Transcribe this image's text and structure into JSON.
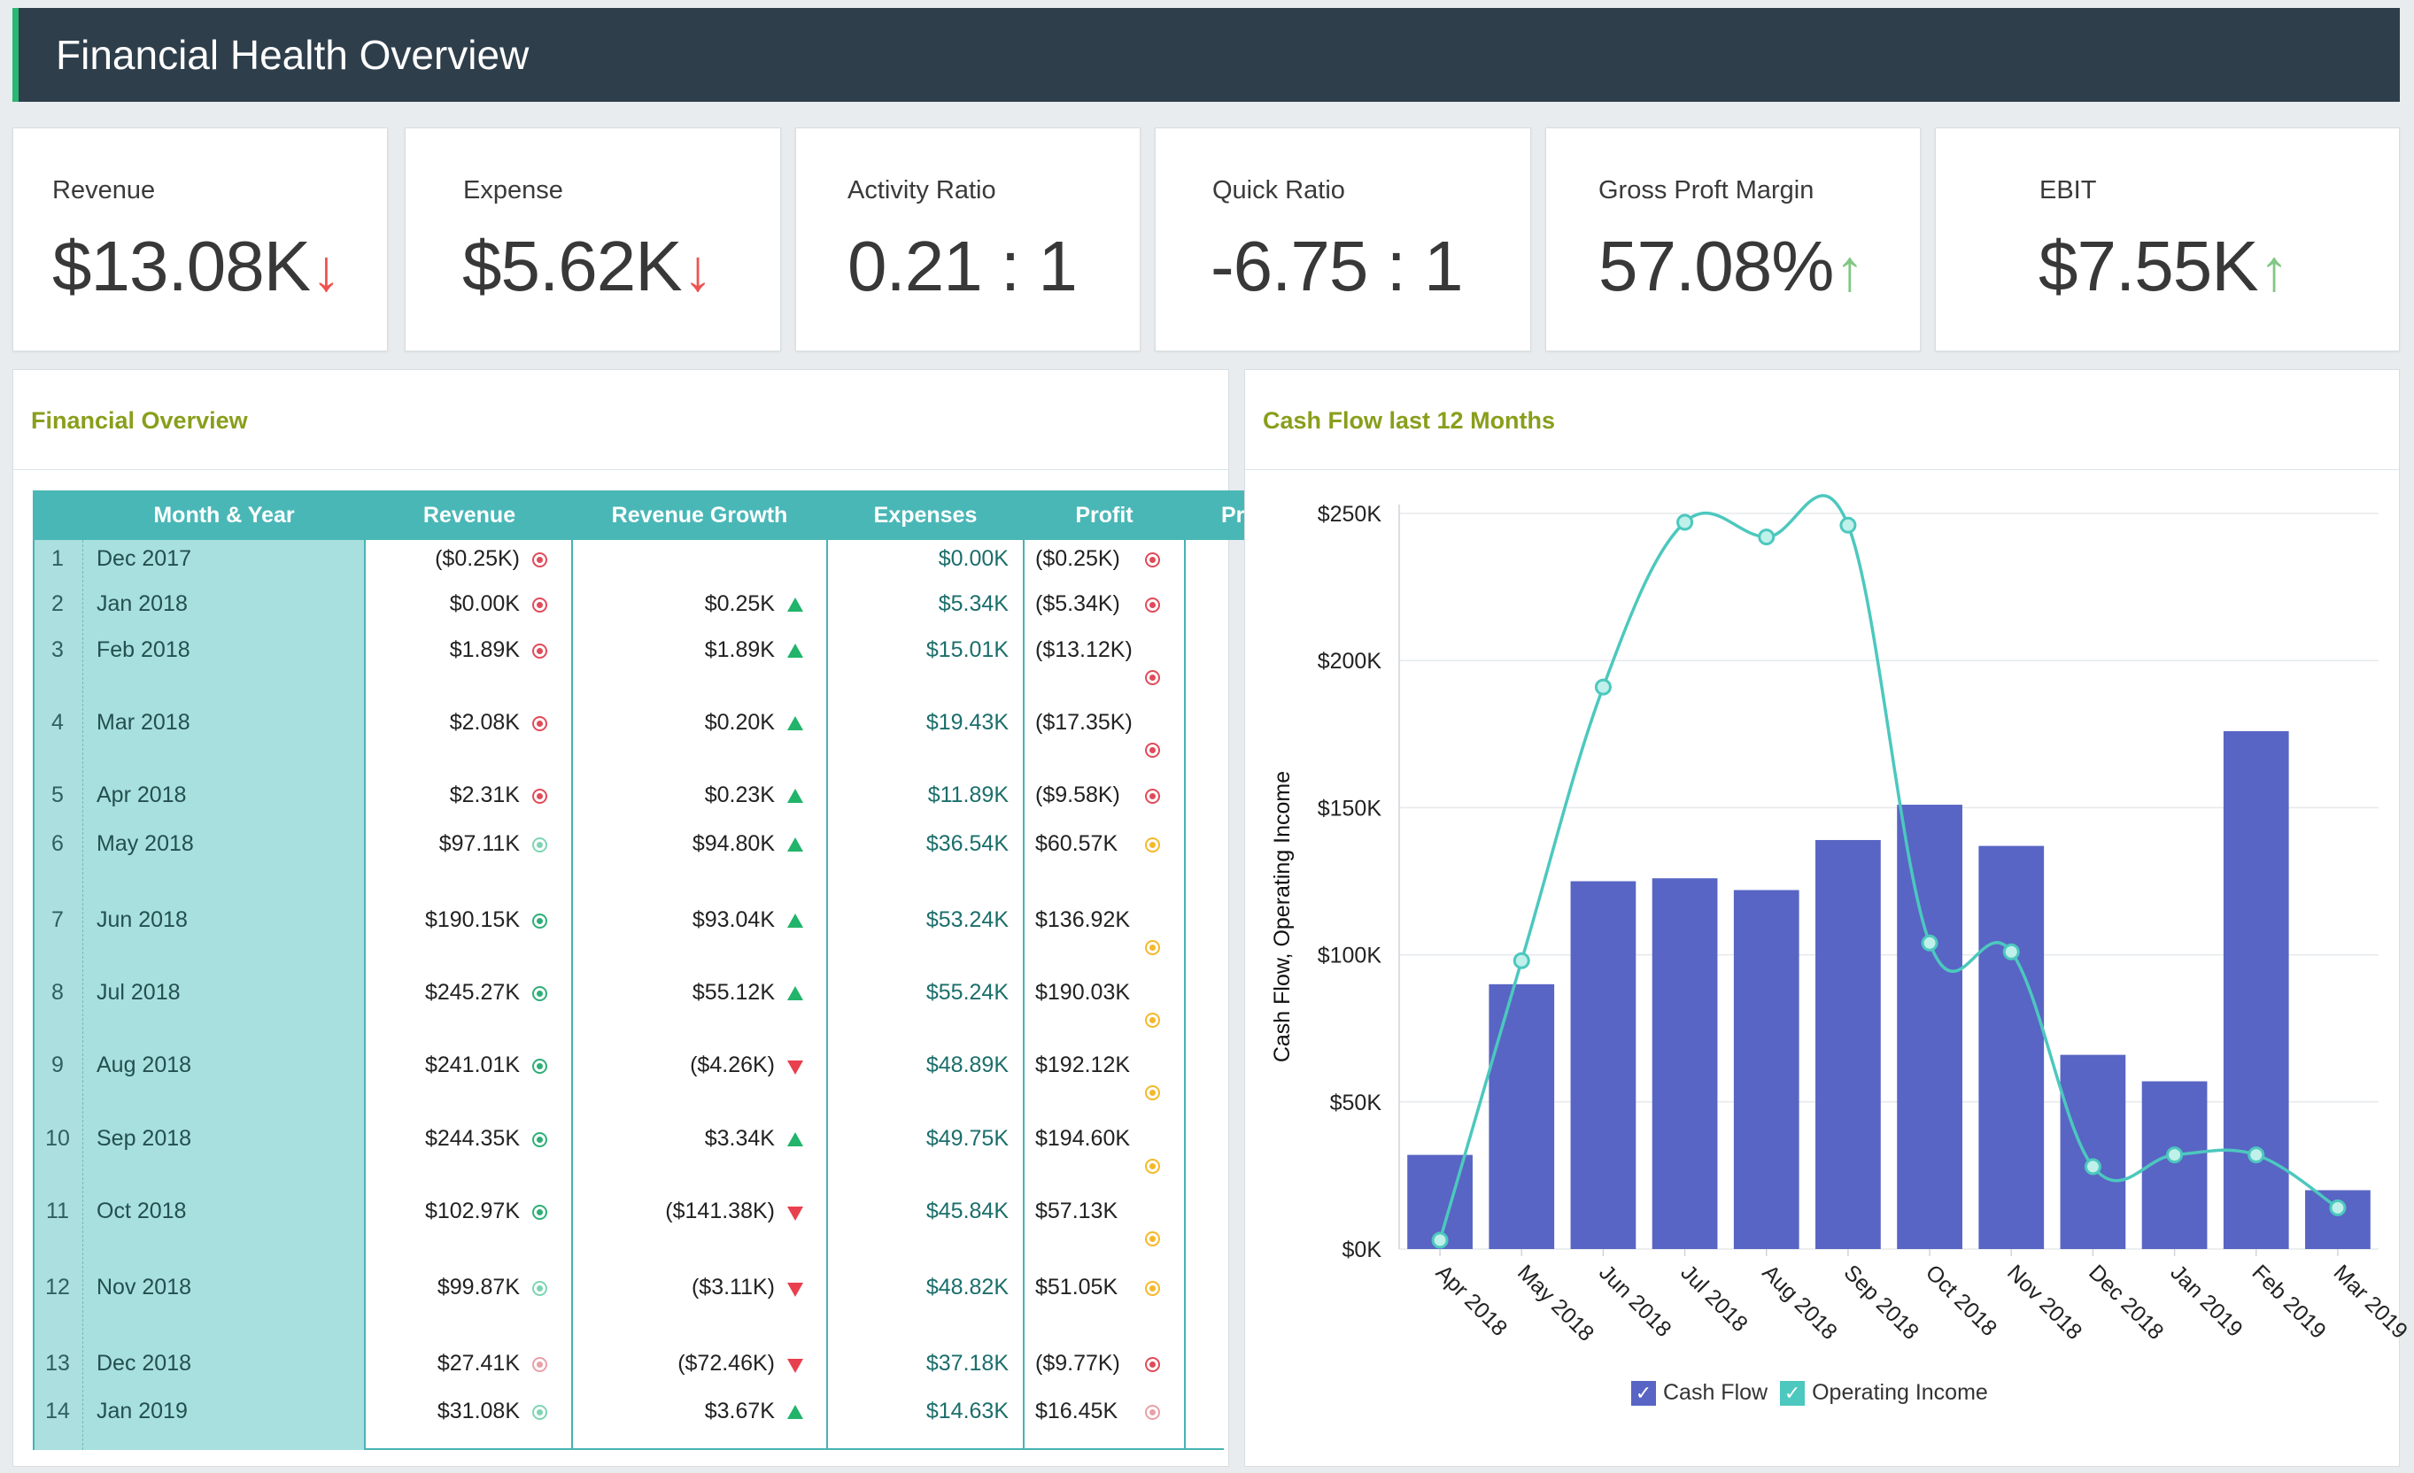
{
  "header": {
    "title": "Financial Health Overview"
  },
  "kpis": [
    {
      "label": "Revenue",
      "value": "$13.08K",
      "trend": "down"
    },
    {
      "label": "Expense",
      "value": "$5.62K",
      "trend": "down"
    },
    {
      "label": "Activity Ratio",
      "value": "0.21 : 1",
      "trend": ""
    },
    {
      "label": "Quick Ratio",
      "value": "-6.75 : 1",
      "trend": ""
    },
    {
      "label": "Gross Proft Margin",
      "value": "57.08%",
      "trend": "up"
    },
    {
      "label": "EBIT",
      "value": "$7.55K",
      "trend": "up"
    }
  ],
  "financial_overview": {
    "title": "Financial Overview",
    "columns": [
      "Month & Year",
      "Revenue",
      "Revenue Growth",
      "Expenses",
      "Profit",
      "Pr"
    ],
    "rows": [
      {
        "n": "1",
        "month": "Dec 2017",
        "revenue": "($0.25K)",
        "rev_ind": "red",
        "growth": "",
        "growth_dir": "",
        "expenses": "$0.00K",
        "profit": "($0.25K)",
        "profit_ind": "red"
      },
      {
        "n": "2",
        "month": "Jan 2018",
        "revenue": "$0.00K",
        "rev_ind": "red",
        "growth": "$0.25K",
        "growth_dir": "up",
        "expenses": "$5.34K",
        "profit": "($5.34K)",
        "profit_ind": "red"
      },
      {
        "n": "3",
        "month": "Feb 2018",
        "revenue": "$1.89K",
        "rev_ind": "red",
        "growth": "$1.89K",
        "growth_dir": "up",
        "expenses": "$15.01K",
        "profit": "($13.12K)",
        "profit_ind": "red"
      },
      {
        "n": "4",
        "month": "Mar 2018",
        "revenue": "$2.08K",
        "rev_ind": "red",
        "growth": "$0.20K",
        "growth_dir": "up",
        "expenses": "$19.43K",
        "profit": "($17.35K)",
        "profit_ind": "red"
      },
      {
        "n": "5",
        "month": "Apr 2018",
        "revenue": "$2.31K",
        "rev_ind": "red",
        "growth": "$0.23K",
        "growth_dir": "up",
        "expenses": "$11.89K",
        "profit": "($9.58K)",
        "profit_ind": "red"
      },
      {
        "n": "6",
        "month": "May 2018",
        "revenue": "$97.11K",
        "rev_ind": "lgreen",
        "growth": "$94.80K",
        "growth_dir": "up",
        "expenses": "$36.54K",
        "profit": "$60.57K",
        "profit_ind": "orange"
      },
      {
        "n": "7",
        "month": "Jun 2018",
        "revenue": "$190.15K",
        "rev_ind": "green",
        "growth": "$93.04K",
        "growth_dir": "up",
        "expenses": "$53.24K",
        "profit": "$136.92K",
        "profit_ind": "orange"
      },
      {
        "n": "8",
        "month": "Jul 2018",
        "revenue": "$245.27K",
        "rev_ind": "green",
        "growth": "$55.12K",
        "growth_dir": "up",
        "expenses": "$55.24K",
        "profit": "$190.03K",
        "profit_ind": "orange"
      },
      {
        "n": "9",
        "month": "Aug 2018",
        "revenue": "$241.01K",
        "rev_ind": "green",
        "growth": "($4.26K)",
        "growth_dir": "down",
        "expenses": "$48.89K",
        "profit": "$192.12K",
        "profit_ind": "orange"
      },
      {
        "n": "10",
        "month": "Sep 2018",
        "revenue": "$244.35K",
        "rev_ind": "green",
        "growth": "$3.34K",
        "growth_dir": "up",
        "expenses": "$49.75K",
        "profit": "$194.60K",
        "profit_ind": "orange"
      },
      {
        "n": "11",
        "month": "Oct 2018",
        "revenue": "$102.97K",
        "rev_ind": "green",
        "growth": "($141.38K)",
        "growth_dir": "down",
        "expenses": "$45.84K",
        "profit": "$57.13K",
        "profit_ind": "orange"
      },
      {
        "n": "12",
        "month": "Nov 2018",
        "revenue": "$99.87K",
        "rev_ind": "lgreen",
        "growth": "($3.11K)",
        "growth_dir": "down",
        "expenses": "$48.82K",
        "profit": "$51.05K",
        "profit_ind": "orange"
      },
      {
        "n": "13",
        "month": "Dec 2018",
        "revenue": "$27.41K",
        "rev_ind": "pink",
        "growth": "($72.46K)",
        "growth_dir": "down",
        "expenses": "$37.18K",
        "profit": "($9.77K)",
        "profit_ind": "red"
      },
      {
        "n": "14",
        "month": "Jan 2019",
        "revenue": "$31.08K",
        "rev_ind": "lgreen",
        "growth": "$3.67K",
        "growth_dir": "up",
        "expenses": "$14.63K",
        "profit": "$16.45K",
        "profit_ind": "pink"
      }
    ]
  },
  "cash_flow": {
    "title": "Cash Flow last 12 Months",
    "legend": {
      "cash_flow": "Cash Flow",
      "operating_income": "Operating Income",
      "check": "✓"
    }
  },
  "colors": {
    "bar": "#5865c4",
    "line": "#4cc8be",
    "header": "#2e3e4b",
    "accent": "#2bb673",
    "panel_title": "#8a9e1c"
  },
  "chart_data": {
    "type": "bar",
    "title": "Cash Flow last 12 Months",
    "categories": [
      "Apr 2018",
      "May 2018",
      "Jun 2018",
      "Jul 2018",
      "Aug 2018",
      "Sep 2018",
      "Oct 2018",
      "Nov 2018",
      "Dec 2018",
      "Jan 2019",
      "Feb 2019",
      "Mar 2019"
    ],
    "series": [
      {
        "name": "Cash Flow",
        "type": "bar",
        "values": [
          32000,
          90000,
          125000,
          126000,
          122000,
          139000,
          151000,
          137000,
          66000,
          57000,
          176000,
          20000
        ]
      },
      {
        "name": "Operating Income",
        "type": "line",
        "values": [
          3000,
          98000,
          191000,
          247000,
          242000,
          246000,
          104000,
          101000,
          28000,
          32000,
          32000,
          14000
        ]
      }
    ],
    "ylabel": "Cash Flow, Operating Income",
    "xlabel": "",
    "ylim": [
      0,
      250000
    ],
    "yticks": [
      "$0K",
      "$50K",
      "$100K",
      "$150K",
      "$200K",
      "$250K"
    ],
    "legend_position": "bottom"
  }
}
